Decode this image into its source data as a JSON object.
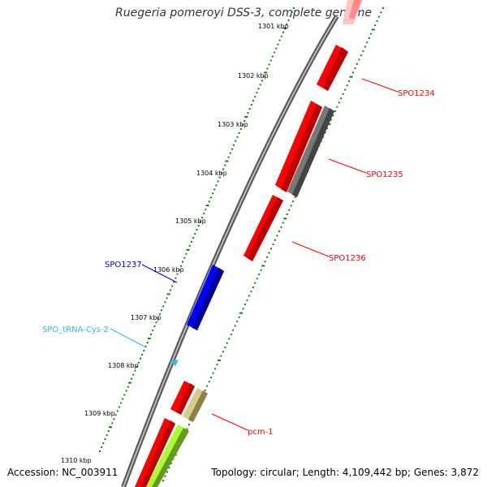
{
  "title": "Ruegeria pomeroyi DSS-3, complete genome",
  "footer": {
    "accession": "Accession: NC_003911",
    "summary": "Topology: circular; Length: 4,109,442 bp; Genes: 3,872"
  },
  "ticks": [
    "1301 kbp",
    "1302 kbp",
    "1303 kbp",
    "1304 kbp",
    "1305 kbp",
    "1306 kbp",
    "1307 kbp",
    "1308 kbp",
    "1309 kbp",
    "1310 kbp"
  ],
  "genes": [
    {
      "label": "SPO1234",
      "strand": "forward",
      "color": "#ff0000"
    },
    {
      "label": "SPO1235",
      "strand": "forward",
      "color": "#ff0000"
    },
    {
      "label": "SPO1236",
      "strand": "forward",
      "color": "#ff0000"
    },
    {
      "label": "SPO1237",
      "strand": "reverse",
      "color": "#0000cc"
    },
    {
      "label": "SPO_tRNA-Cys-2",
      "strand": "reverse",
      "color": "#33bbdd"
    },
    {
      "label": "pcm-1",
      "strand": "forward",
      "color": "#ff0000"
    }
  ],
  "colors": {
    "backbone": "#888888",
    "tick": "#1a7a1a",
    "gene_cds": "#ff0000",
    "gene_reverse": "#0000cc",
    "trna": "#33bbdd",
    "other": "#666666",
    "khaki": "#c8bd7a",
    "lime": "#99ee22"
  }
}
